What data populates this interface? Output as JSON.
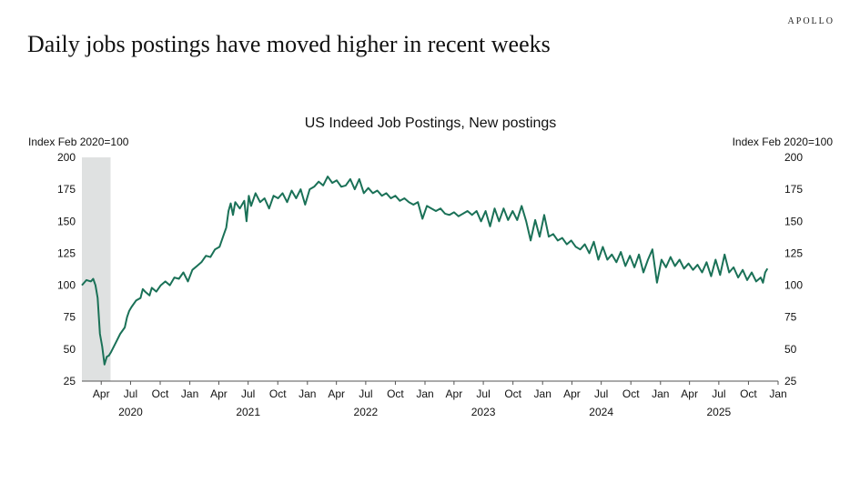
{
  "brand": "APOLLO",
  "headline": "Daily jobs postings have moved higher in recent weeks",
  "colors": {
    "line": "#1a7157",
    "recession": "#dfe1e1",
    "axis": "#555555"
  },
  "chart_data": {
    "type": "line",
    "title": "US Indeed Job Postings, New postings",
    "ylabel_left": "Index Feb 2020=100",
    "ylabel_right": "Index Feb 2020=100",
    "ylim": [
      25,
      200
    ],
    "yticks": [
      25,
      50,
      75,
      100,
      125,
      150,
      175,
      200
    ],
    "x_range": [
      "2020-02-01",
      "2026-01-01"
    ],
    "month_ticks": [
      {
        "date": "2020-04-01",
        "label": "Apr"
      },
      {
        "date": "2020-07-01",
        "label": "Jul"
      },
      {
        "date": "2020-10-01",
        "label": "Oct"
      },
      {
        "date": "2021-01-01",
        "label": "Jan"
      },
      {
        "date": "2021-04-01",
        "label": "Apr"
      },
      {
        "date": "2021-07-01",
        "label": "Jul"
      },
      {
        "date": "2021-10-01",
        "label": "Oct"
      },
      {
        "date": "2022-01-01",
        "label": "Jan"
      },
      {
        "date": "2022-04-01",
        "label": "Apr"
      },
      {
        "date": "2022-07-01",
        "label": "Jul"
      },
      {
        "date": "2022-10-01",
        "label": "Oct"
      },
      {
        "date": "2023-01-01",
        "label": "Jan"
      },
      {
        "date": "2023-04-01",
        "label": "Apr"
      },
      {
        "date": "2023-07-01",
        "label": "Jul"
      },
      {
        "date": "2023-10-01",
        "label": "Oct"
      },
      {
        "date": "2024-01-01",
        "label": "Jan"
      },
      {
        "date": "2024-04-01",
        "label": "Apr"
      },
      {
        "date": "2024-07-01",
        "label": "Jul"
      },
      {
        "date": "2024-10-01",
        "label": "Oct"
      },
      {
        "date": "2025-01-01",
        "label": "Jan"
      },
      {
        "date": "2025-04-01",
        "label": "Apr"
      },
      {
        "date": "2025-07-01",
        "label": "Jul"
      },
      {
        "date": "2025-10-01",
        "label": "Oct"
      },
      {
        "date": "2026-01-01",
        "label": "Jan"
      }
    ],
    "year_labels": [
      {
        "date": "2020-07-01",
        "label": "2020"
      },
      {
        "date": "2021-07-01",
        "label": "2021"
      },
      {
        "date": "2022-07-01",
        "label": "2022"
      },
      {
        "date": "2023-07-01",
        "label": "2023"
      },
      {
        "date": "2024-07-01",
        "label": "2024"
      },
      {
        "date": "2025-07-01",
        "label": "2025"
      }
    ],
    "recession": [
      "2020-02-01",
      "2020-04-30"
    ],
    "series": [
      {
        "points": [
          [
            "2020-02-01",
            100
          ],
          [
            "2020-02-15",
            104
          ],
          [
            "2020-02-29",
            103
          ],
          [
            "2020-03-07",
            105
          ],
          [
            "2020-03-14",
            100
          ],
          [
            "2020-03-21",
            90
          ],
          [
            "2020-03-28",
            62
          ],
          [
            "2020-04-04",
            52
          ],
          [
            "2020-04-11",
            38
          ],
          [
            "2020-04-18",
            44
          ],
          [
            "2020-04-25",
            45
          ],
          [
            "2020-05-02",
            48
          ],
          [
            "2020-05-16",
            55
          ],
          [
            "2020-05-30",
            62
          ],
          [
            "2020-06-13",
            67
          ],
          [
            "2020-06-20",
            75
          ],
          [
            "2020-06-27",
            80
          ],
          [
            "2020-07-04",
            83
          ],
          [
            "2020-07-18",
            88
          ],
          [
            "2020-08-01",
            90
          ],
          [
            "2020-08-08",
            97
          ],
          [
            "2020-08-15",
            95
          ],
          [
            "2020-08-29",
            92
          ],
          [
            "2020-09-05",
            98
          ],
          [
            "2020-09-19",
            95
          ],
          [
            "2020-10-03",
            100
          ],
          [
            "2020-10-17",
            103
          ],
          [
            "2020-10-31",
            100
          ],
          [
            "2020-11-14",
            106
          ],
          [
            "2020-11-28",
            105
          ],
          [
            "2020-12-12",
            110
          ],
          [
            "2020-12-26",
            103
          ],
          [
            "2021-01-09",
            112
          ],
          [
            "2021-01-23",
            115
          ],
          [
            "2021-02-06",
            118
          ],
          [
            "2021-02-20",
            123
          ],
          [
            "2021-03-06",
            122
          ],
          [
            "2021-03-20",
            128
          ],
          [
            "2021-04-03",
            130
          ],
          [
            "2021-04-17",
            140
          ],
          [
            "2021-04-24",
            145
          ],
          [
            "2021-05-01",
            158
          ],
          [
            "2021-05-08",
            164
          ],
          [
            "2021-05-15",
            155
          ],
          [
            "2021-05-22",
            165
          ],
          [
            "2021-06-05",
            160
          ],
          [
            "2021-06-19",
            166
          ],
          [
            "2021-06-26",
            150
          ],
          [
            "2021-07-03",
            170
          ],
          [
            "2021-07-10",
            162
          ],
          [
            "2021-07-24",
            172
          ],
          [
            "2021-08-07",
            165
          ],
          [
            "2021-08-21",
            168
          ],
          [
            "2021-09-04",
            160
          ],
          [
            "2021-09-18",
            170
          ],
          [
            "2021-10-02",
            168
          ],
          [
            "2021-10-16",
            172
          ],
          [
            "2021-10-30",
            165
          ],
          [
            "2021-11-13",
            174
          ],
          [
            "2021-11-27",
            168
          ],
          [
            "2021-12-11",
            175
          ],
          [
            "2021-12-25",
            163
          ],
          [
            "2022-01-08",
            175
          ],
          [
            "2022-01-22",
            177
          ],
          [
            "2022-02-05",
            181
          ],
          [
            "2022-02-19",
            178
          ],
          [
            "2022-03-05",
            185
          ],
          [
            "2022-03-19",
            180
          ],
          [
            "2022-04-02",
            182
          ],
          [
            "2022-04-16",
            177
          ],
          [
            "2022-04-30",
            178
          ],
          [
            "2022-05-14",
            183
          ],
          [
            "2022-05-28",
            175
          ],
          [
            "2022-06-11",
            183
          ],
          [
            "2022-06-25",
            172
          ],
          [
            "2022-07-09",
            176
          ],
          [
            "2022-07-23",
            172
          ],
          [
            "2022-08-06",
            174
          ],
          [
            "2022-08-20",
            170
          ],
          [
            "2022-09-03",
            172
          ],
          [
            "2022-09-17",
            168
          ],
          [
            "2022-10-01",
            170
          ],
          [
            "2022-10-15",
            166
          ],
          [
            "2022-10-29",
            168
          ],
          [
            "2022-11-12",
            165
          ],
          [
            "2022-11-26",
            163
          ],
          [
            "2022-12-10",
            165
          ],
          [
            "2022-12-24",
            152
          ],
          [
            "2023-01-07",
            162
          ],
          [
            "2023-01-21",
            160
          ],
          [
            "2023-02-04",
            158
          ],
          [
            "2023-02-18",
            160
          ],
          [
            "2023-03-04",
            156
          ],
          [
            "2023-03-18",
            155
          ],
          [
            "2023-04-01",
            157
          ],
          [
            "2023-04-15",
            154
          ],
          [
            "2023-04-29",
            156
          ],
          [
            "2023-05-13",
            158
          ],
          [
            "2023-05-27",
            155
          ],
          [
            "2023-06-10",
            158
          ],
          [
            "2023-06-24",
            150
          ],
          [
            "2023-07-08",
            158
          ],
          [
            "2023-07-22",
            146
          ],
          [
            "2023-08-05",
            160
          ],
          [
            "2023-08-19",
            150
          ],
          [
            "2023-09-02",
            160
          ],
          [
            "2023-09-16",
            151
          ],
          [
            "2023-09-30",
            158
          ],
          [
            "2023-10-14",
            151
          ],
          [
            "2023-10-28",
            162
          ],
          [
            "2023-11-11",
            150
          ],
          [
            "2023-11-25",
            135
          ],
          [
            "2023-12-09",
            151
          ],
          [
            "2023-12-23",
            138
          ],
          [
            "2024-01-06",
            155
          ],
          [
            "2024-01-20",
            138
          ],
          [
            "2024-02-03",
            140
          ],
          [
            "2024-02-17",
            135
          ],
          [
            "2024-03-02",
            137
          ],
          [
            "2024-03-16",
            132
          ],
          [
            "2024-03-30",
            135
          ],
          [
            "2024-04-13",
            130
          ],
          [
            "2024-04-27",
            128
          ],
          [
            "2024-05-11",
            132
          ],
          [
            "2024-05-25",
            125
          ],
          [
            "2024-06-08",
            134
          ],
          [
            "2024-06-22",
            120
          ],
          [
            "2024-07-06",
            130
          ],
          [
            "2024-07-20",
            120
          ],
          [
            "2024-08-03",
            124
          ],
          [
            "2024-08-17",
            118
          ],
          [
            "2024-08-31",
            126
          ],
          [
            "2024-09-14",
            115
          ],
          [
            "2024-09-28",
            123
          ],
          [
            "2024-10-12",
            114
          ],
          [
            "2024-10-26",
            124
          ],
          [
            "2024-11-09",
            110
          ],
          [
            "2024-11-23",
            120
          ],
          [
            "2024-12-07",
            128
          ],
          [
            "2024-12-21",
            102
          ],
          [
            "2025-01-04",
            120
          ],
          [
            "2025-01-18",
            114
          ],
          [
            "2025-02-01",
            122
          ],
          [
            "2025-02-15",
            115
          ],
          [
            "2025-03-01",
            120
          ],
          [
            "2025-03-15",
            113
          ],
          [
            "2025-03-29",
            117
          ],
          [
            "2025-04-12",
            112
          ],
          [
            "2025-04-26",
            116
          ],
          [
            "2025-05-10",
            110
          ],
          [
            "2025-05-24",
            118
          ],
          [
            "2025-06-07",
            107
          ],
          [
            "2025-06-21",
            120
          ],
          [
            "2025-07-05",
            108
          ],
          [
            "2025-07-19",
            124
          ],
          [
            "2025-08-02",
            110
          ],
          [
            "2025-08-16",
            114
          ],
          [
            "2025-08-30",
            106
          ],
          [
            "2025-09-13",
            112
          ],
          [
            "2025-09-27",
            104
          ],
          [
            "2025-10-11",
            110
          ],
          [
            "2025-10-25",
            103
          ],
          [
            "2025-11-08",
            106
          ],
          [
            "2025-11-15",
            102
          ],
          [
            "2025-11-22",
            110
          ],
          [
            "2025-11-29",
            113
          ]
        ]
      }
    ]
  }
}
